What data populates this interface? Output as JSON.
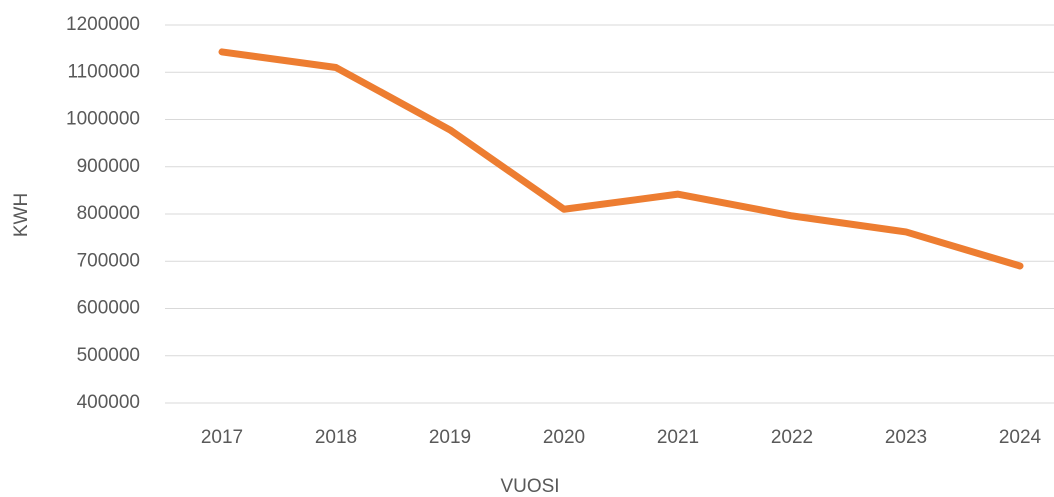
{
  "chart_data": {
    "type": "line",
    "categories": [
      "2017",
      "2018",
      "2019",
      "2020",
      "2021",
      "2022",
      "2023",
      "2024"
    ],
    "series": [
      {
        "name": "KWH",
        "color": "#ed7d31",
        "values": [
          1143000,
          1110000,
          978000,
          810000,
          842000,
          796000,
          762000,
          690000
        ]
      }
    ],
    "xlabel": "VUOSI",
    "ylabel": "KWH",
    "ylim": [
      400000,
      1200000
    ],
    "yticks": [
      400000,
      500000,
      600000,
      700000,
      800000,
      900000,
      1000000,
      1100000,
      1200000
    ],
    "grid": true
  }
}
